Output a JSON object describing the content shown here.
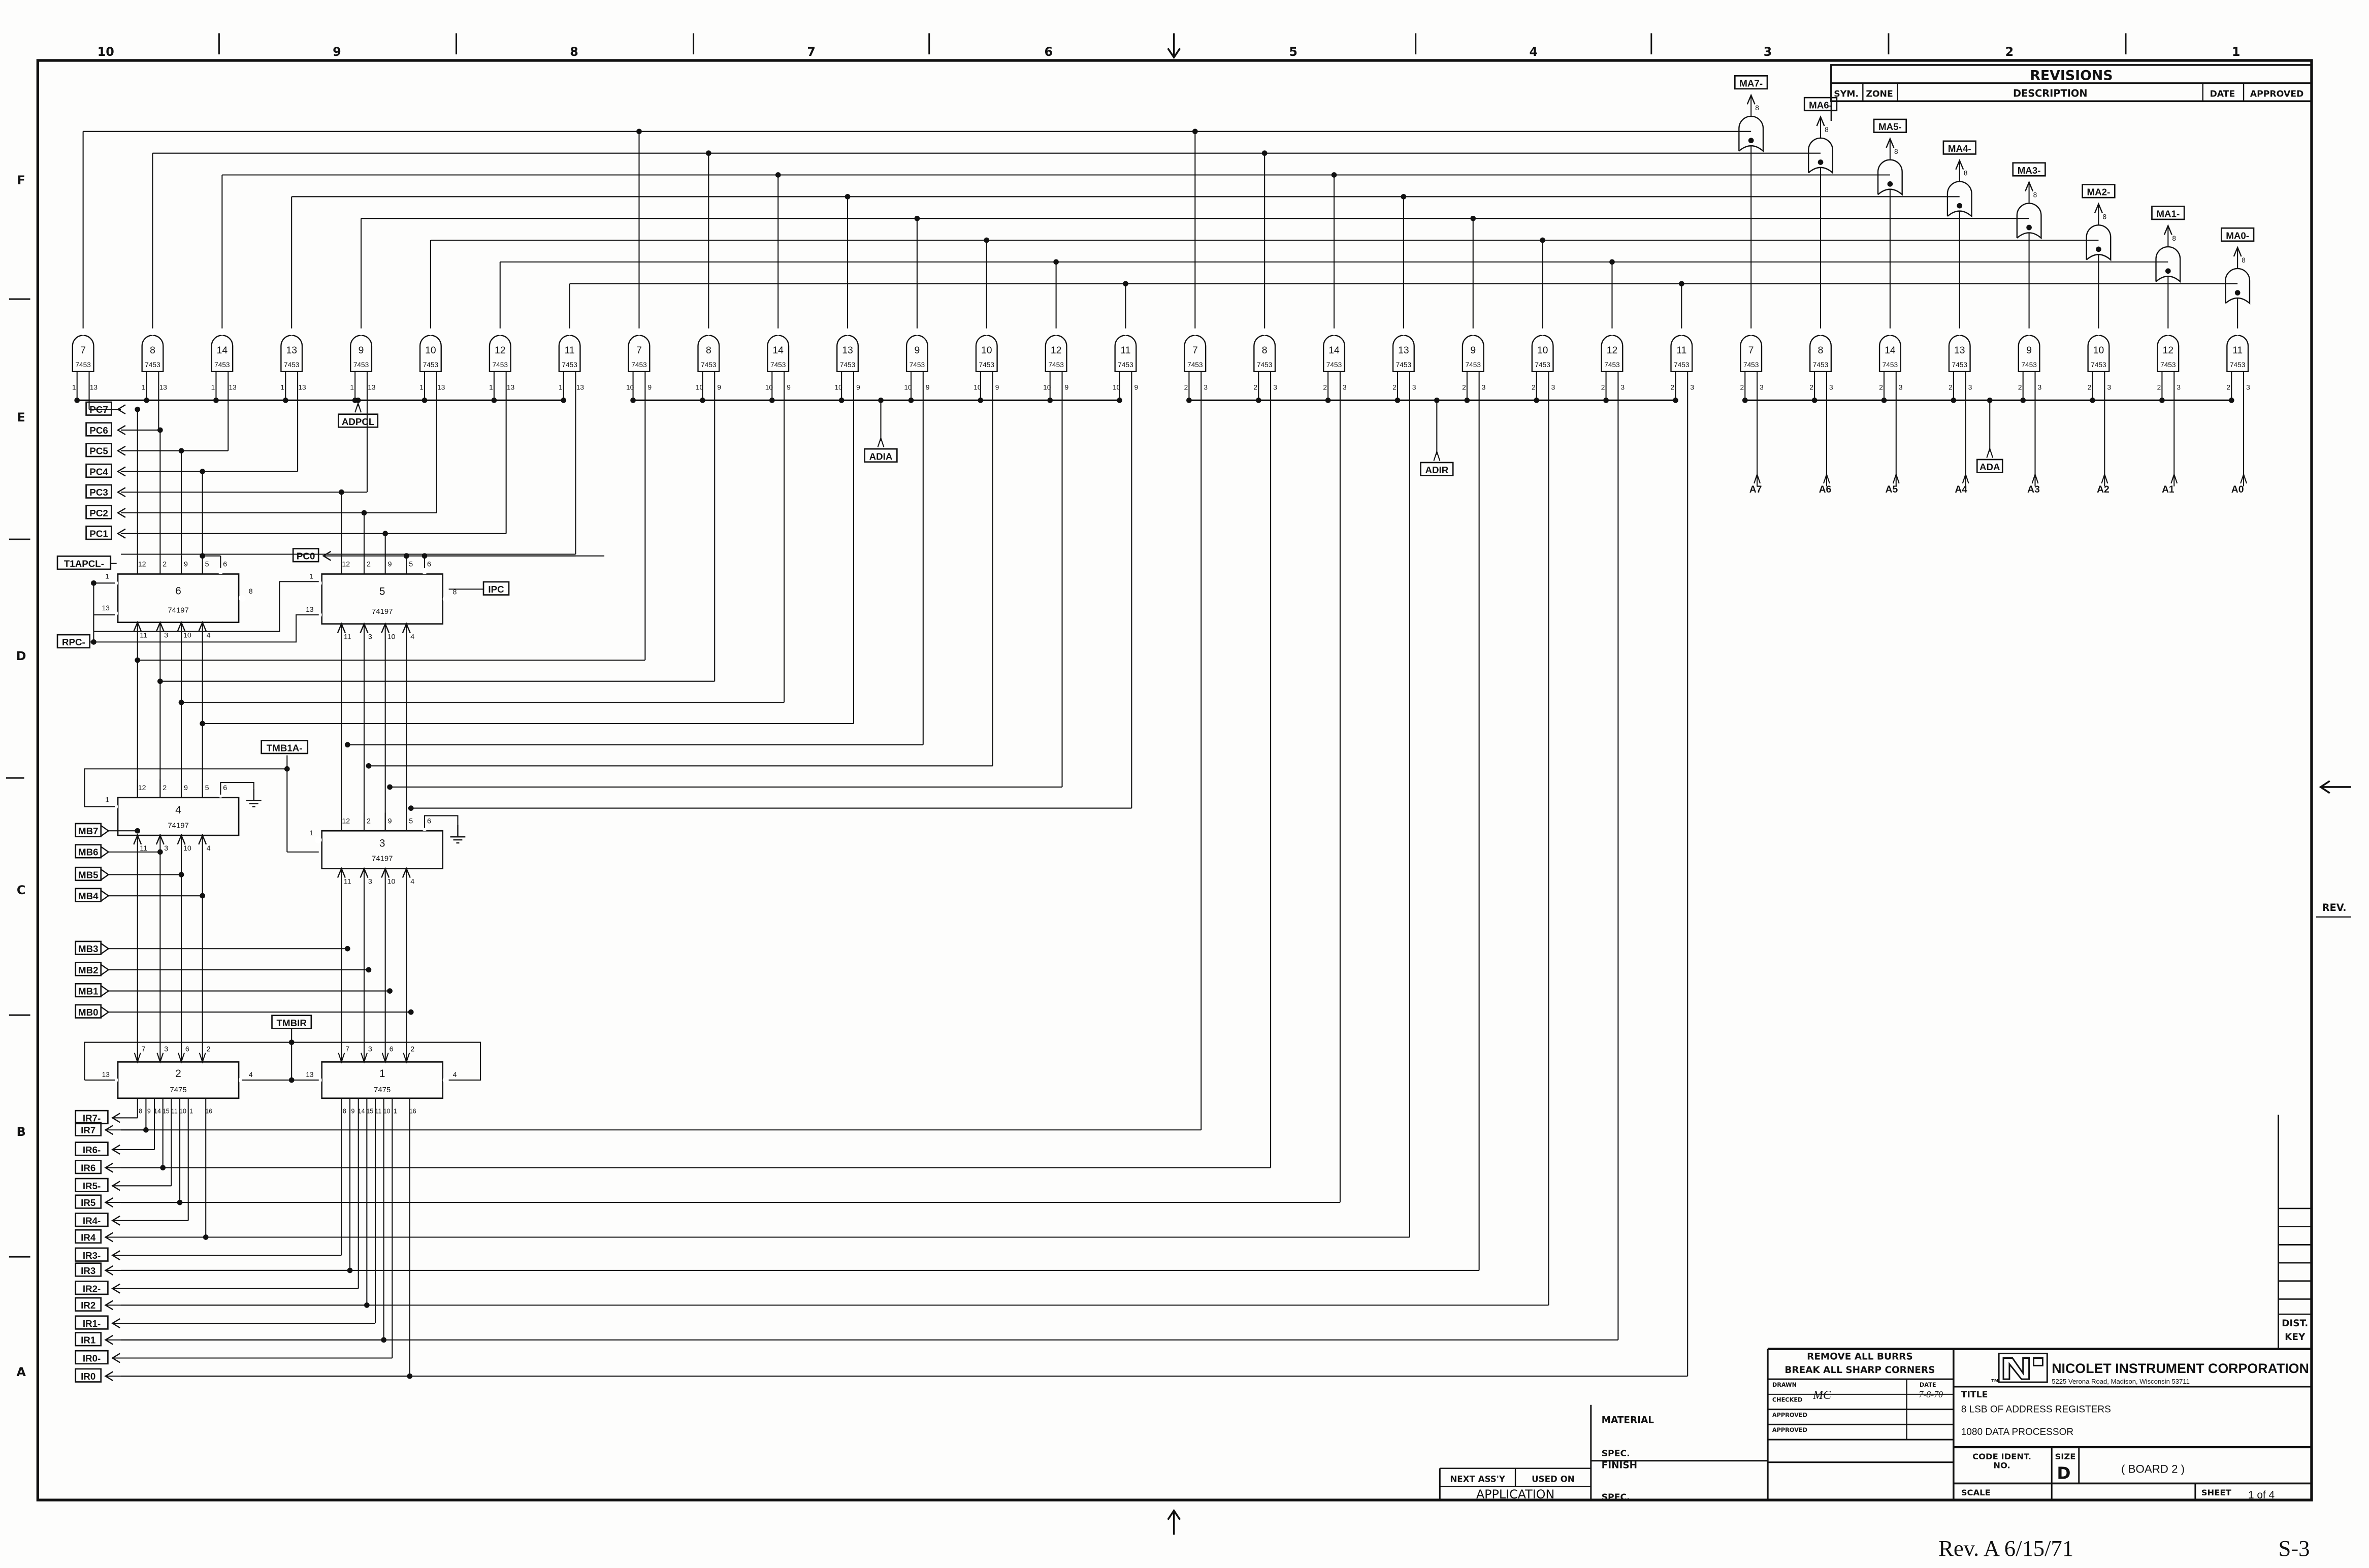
{
  "zones": {
    "columns": [
      "10",
      "9",
      "8",
      "7",
      "6",
      "5",
      "4",
      "3",
      "2",
      "1"
    ],
    "rows": [
      "F",
      "E",
      "D",
      "C",
      "B",
      "A"
    ]
  },
  "revisions": {
    "title": "REVISIONS",
    "columns": [
      "SYM.",
      "ZONE",
      "DESCRIPTION",
      "DATE",
      "APPROVED"
    ]
  },
  "rev_marker": "REV.",
  "dist_key": [
    "DIST.",
    "KEY"
  ],
  "gates": {
    "numbers": [
      "7",
      "8",
      "14",
      "13",
      "9",
      "10",
      "12",
      "11"
    ],
    "type": "7453",
    "pins": [
      [
        "1",
        "13"
      ],
      [
        "10",
        "9"
      ],
      [
        "2",
        "3"
      ],
      [
        "2",
        "3"
      ]
    ],
    "bus_signals": [
      "ADPCL",
      "ADIA",
      "ADIR",
      "ADA"
    ]
  },
  "ma_gates": {
    "labels": [
      "MA7-",
      "MA6-",
      "MA5-",
      "MA4-",
      "MA3-",
      "MA2-",
      "MA1-",
      "MA0-"
    ],
    "pin": "8"
  },
  "address_outputs": [
    "A7",
    "A6",
    "A5",
    "A4",
    "A3",
    "A2",
    "A1",
    "A0"
  ],
  "pc_outputs": [
    "PC7",
    "PC6",
    "PC5",
    "PC4",
    "PC3",
    "PC2",
    "PC1",
    "PC0"
  ],
  "control_signals": {
    "t1apcl": "T1APCL-",
    "rpc": "RPC-",
    "ipc": "IPC",
    "tmb1a": "TMB1A-",
    "tmbir": "TMBIR"
  },
  "counters": [
    {
      "id": "6",
      "type": "74197"
    },
    {
      "id": "5",
      "type": "74197"
    },
    {
      "id": "4",
      "type": "74197"
    },
    {
      "id": "3",
      "type": "74197"
    }
  ],
  "counter_pins": {
    "top": [
      "12",
      "2",
      "9",
      "5",
      "6"
    ],
    "bottom": [
      "11",
      "3",
      "10",
      "4"
    ],
    "left": [
      "1",
      "13"
    ],
    "right": "8"
  },
  "latches": [
    {
      "id": "2",
      "type": "7475"
    },
    {
      "id": "1",
      "type": "7475"
    }
  ],
  "latch_pins": {
    "top": [
      "7",
      "3",
      "6",
      "2"
    ],
    "bottom": [
      "8",
      "9",
      "14",
      "15",
      "11",
      "10",
      "1",
      "16"
    ],
    "left": "13",
    "right": "4"
  },
  "mb_inputs": [
    "MB7",
    "MB6",
    "MB5",
    "MB4",
    "MB3",
    "MB2",
    "MB1",
    "MB0"
  ],
  "ir_outputs": [
    "IR7-",
    "IR7",
    "IR6-",
    "IR6",
    "IR5-",
    "IR5",
    "IR4-",
    "IR4",
    "IR3-",
    "IR3",
    "IR2-",
    "IR2",
    "IR1-",
    "IR1",
    "IR0-",
    "IR0"
  ],
  "title_block": {
    "notes": [
      "REMOVE ALL BURRS",
      "BREAK ALL SHARP CORNERS"
    ],
    "drawn_label": "DRAWN",
    "drawn_by": "MC",
    "date_label": "DATE",
    "date": "7-8-70",
    "checked_label": "CHECKED",
    "approved_label": "APPROVED",
    "company": "NICOLET INSTRUMENT CORPORATION",
    "address": "5225 Verona Road, Madison, Wisconsin 53711",
    "tm": "TM",
    "title_label": "TITLE",
    "title_line1": "8 LSB OF ADDRESS REGISTERS",
    "title_line2": "1080 DATA PROCESSOR",
    "code_ident_label": "CODE IDENT.",
    "code_ident_label2": "NO.",
    "size_label": "SIZE",
    "size": "D",
    "board": "( BOARD 2 )",
    "scale_label": "SCALE",
    "sheet_label": "SHEET",
    "sheet": "1 of 4"
  },
  "application_block": {
    "material": "MATERIAL",
    "spec": "SPEC.",
    "finish": "FINISH",
    "next_assy": "NEXT ASS'Y",
    "used_on": "USED ON",
    "application": "APPLICATION"
  },
  "footer": {
    "revision": "Rev. A 6/15/71",
    "page": "S-3"
  }
}
